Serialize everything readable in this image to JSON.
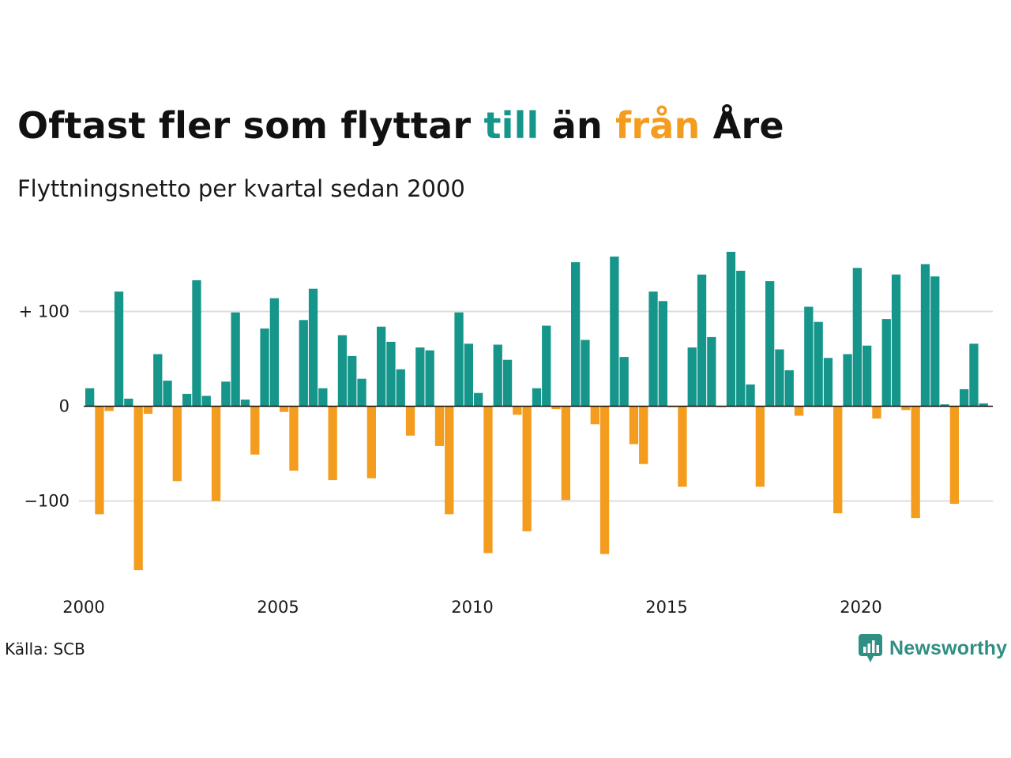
{
  "title": {
    "part1": "Oftast fler som flyttar ",
    "highlight_pos": "till",
    "part2": " än ",
    "highlight_neg": "från",
    "part3": " Åre"
  },
  "subtitle": "Flyttningsnetto per kvartal sedan 2000",
  "source": "Källa: SCB",
  "brand": "Newsworthy",
  "colors": {
    "positive": "#16968a",
    "negative": "#f39c1d",
    "grid": "#dddddd",
    "axis": "#111111"
  },
  "chart_data": {
    "type": "bar",
    "y_tick_labels": [
      "+ 100",
      "0",
      "−100"
    ],
    "y_ticks": [
      100,
      0,
      -100
    ],
    "ylim": [
      -185,
      170
    ],
    "x_tick_labels": [
      "2000",
      "2005",
      "2010",
      "2015",
      "2020"
    ],
    "x_ticks": [
      2000,
      2005,
      2010,
      2015,
      2020
    ],
    "start": 2000,
    "quarters_per_year": 4,
    "values": [
      19,
      -114,
      -5,
      121,
      8,
      -173,
      -8,
      55,
      27,
      -79,
      13,
      133,
      11,
      -100,
      26,
      99,
      7,
      -51,
      82,
      114,
      -6,
      -68,
      91,
      124,
      19,
      -78,
      75,
      53,
      29,
      -76,
      84,
      68,
      39,
      -31,
      62,
      59,
      -42,
      -114,
      99,
      66,
      14,
      -155,
      65,
      49,
      -9,
      -132,
      19,
      85,
      -3,
      -99,
      152,
      70,
      -19,
      -156,
      158,
      52,
      -40,
      -61,
      121,
      111,
      -1,
      -85,
      62,
      139,
      73,
      -1,
      163,
      143,
      23,
      -85,
      132,
      60,
      38,
      -10,
      105,
      89,
      51,
      -113,
      55,
      146,
      64,
      -13,
      92,
      139,
      -4,
      -118,
      150,
      137,
      2,
      -103,
      18,
      66,
      3
    ]
  }
}
